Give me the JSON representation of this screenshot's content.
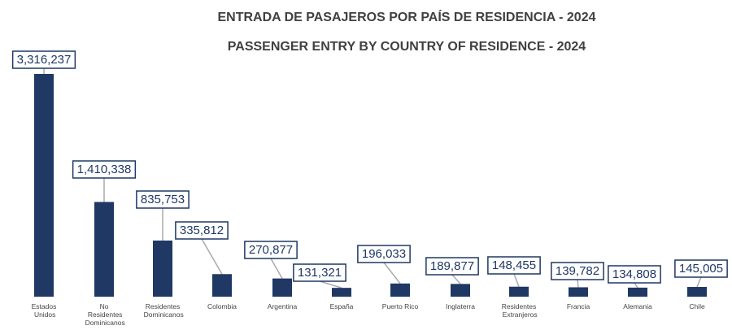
{
  "chart_data": {
    "type": "bar",
    "title": "ENTRADA DE PASAJEROS POR PAÍS DE RESIDENCIA - 2024",
    "subtitle": "PASSENGER ENTRY BY COUNTRY OF RESIDENCE - 2024",
    "categories": [
      "Estados Unidos",
      "No Residentes Dominicanos",
      "Residentes Dominicanos",
      "Colombia",
      "Argentina",
      "España",
      "Puerto Rico",
      "Inglaterra",
      "Residentes Extranjeros",
      "Francia",
      "Alemania",
      "Chile"
    ],
    "values": [
      3316237,
      1410338,
      835753,
      335812,
      270877,
      131321,
      196033,
      189877,
      148455,
      139782,
      134808,
      145005
    ],
    "value_labels": [
      "3,316,237",
      "1,410,338",
      "835,753",
      "335,812",
      "270,877",
      "131,321",
      "196,033",
      "189,877",
      "148,455",
      "139,782",
      "134,808",
      "145,005"
    ],
    "color": "#1f3864"
  }
}
